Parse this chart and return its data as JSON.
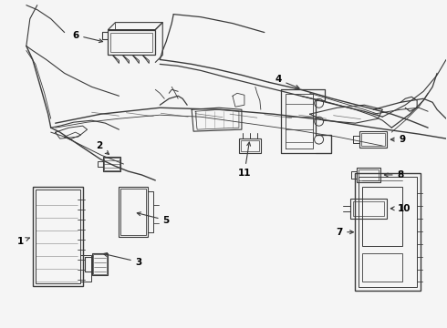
{
  "bg_color": "#f5f5f5",
  "line_color": "#3a3a3a",
  "label_color": "#000000",
  "fig_width": 4.9,
  "fig_height": 3.6,
  "dpi": 100,
  "lw": 0.75,
  "label_fs": 7.5
}
